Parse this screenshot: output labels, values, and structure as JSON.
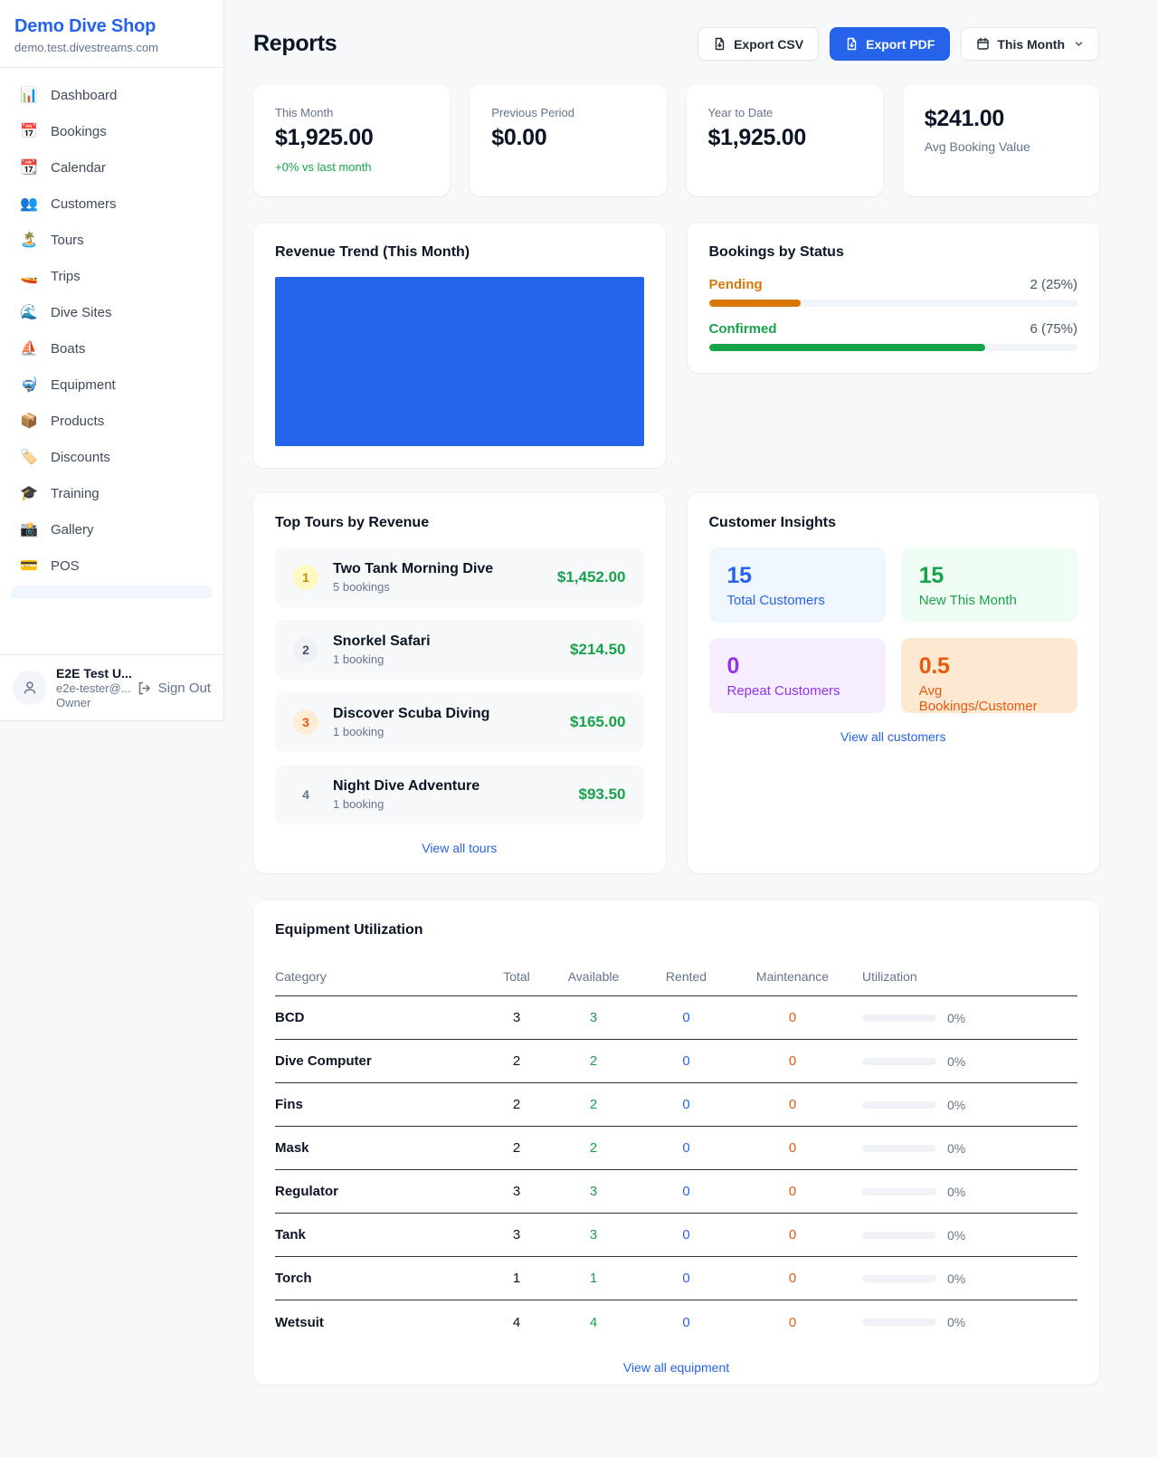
{
  "colors": {
    "accent_blue": "#2563eb",
    "green": "#16a34a",
    "orange_pending": "#d97706",
    "orange_deep": "#ea580c",
    "purple": "#9333ea",
    "page_bg": "#f7f8fa"
  },
  "sidebar": {
    "brand": "Demo Dive Shop",
    "domain": "demo.test.divestreams.com",
    "items": [
      {
        "icon": "📊",
        "label": "Dashboard"
      },
      {
        "icon": "📅",
        "label": "Bookings"
      },
      {
        "icon": "📆",
        "label": "Calendar"
      },
      {
        "icon": "👥",
        "label": "Customers"
      },
      {
        "icon": "🏝️",
        "label": "Tours"
      },
      {
        "icon": "🚤",
        "label": "Trips"
      },
      {
        "icon": "🌊",
        "label": "Dive Sites"
      },
      {
        "icon": "⛵",
        "label": "Boats"
      },
      {
        "icon": "🤿",
        "label": "Equipment"
      },
      {
        "icon": "📦",
        "label": "Products"
      },
      {
        "icon": "🏷️",
        "label": "Discounts"
      },
      {
        "icon": "🎓",
        "label": "Training"
      },
      {
        "icon": "📸",
        "label": "Gallery"
      },
      {
        "icon": "💳",
        "label": "POS"
      }
    ],
    "user": {
      "name": "E2E Test U...",
      "email": "e2e-tester@...",
      "role": "Owner",
      "sign_out": "Sign Out"
    }
  },
  "header": {
    "title": "Reports",
    "export_csv": "Export CSV",
    "export_pdf": "Export PDF",
    "period": "This Month"
  },
  "stats": {
    "this_month": {
      "label": "This Month",
      "value": "$1,925.00",
      "delta": "+0% vs last month"
    },
    "previous_period": {
      "label": "Previous Period",
      "value": "$0.00"
    },
    "year_to_date": {
      "label": "Year to Date",
      "value": "$1,925.00"
    },
    "avg_booking": {
      "value": "$241.00",
      "label": "Avg Booking Value"
    }
  },
  "revenue_trend": {
    "title": "Revenue Trend (This Month)"
  },
  "bookings_status": {
    "title": "Bookings by Status",
    "items": [
      {
        "label": "Pending",
        "value": "2 (25%)",
        "percent": 25
      },
      {
        "label": "Confirmed",
        "value": "6 (75%)",
        "percent": 75
      }
    ]
  },
  "top_tours": {
    "title": "Top Tours by Revenue",
    "items": [
      {
        "rank": "1",
        "name": "Two Tank Morning Dive",
        "bookings": "5 bookings",
        "revenue": "$1,452.00"
      },
      {
        "rank": "2",
        "name": "Snorkel Safari",
        "bookings": "1 booking",
        "revenue": "$214.50"
      },
      {
        "rank": "3",
        "name": "Discover Scuba Diving",
        "bookings": "1 booking",
        "revenue": "$165.00"
      },
      {
        "rank": "4",
        "name": "Night Dive Adventure",
        "bookings": "1 booking",
        "revenue": "$93.50"
      }
    ],
    "link": "View all tours"
  },
  "customer_insights": {
    "title": "Customer Insights",
    "tiles": [
      {
        "value": "15",
        "label": "Total Customers"
      },
      {
        "value": "15",
        "label": "New This Month"
      },
      {
        "value": "0",
        "label": "Repeat Customers"
      },
      {
        "value": "0.5",
        "label": "Avg Bookings/Customer"
      }
    ],
    "link": "View all customers"
  },
  "equipment": {
    "title": "Equipment Utilization",
    "headers": [
      "Category",
      "Total",
      "Available",
      "Rented",
      "Maintenance",
      "Utilization"
    ],
    "rows": [
      {
        "category": "BCD",
        "total": "3",
        "available": "3",
        "rented": "0",
        "maintenance": "0",
        "utilization": "0%",
        "utilization_percent": 0
      },
      {
        "category": "Dive Computer",
        "total": "2",
        "available": "2",
        "rented": "0",
        "maintenance": "0",
        "utilization": "0%",
        "utilization_percent": 0
      },
      {
        "category": "Fins",
        "total": "2",
        "available": "2",
        "rented": "0",
        "maintenance": "0",
        "utilization": "0%",
        "utilization_percent": 0
      },
      {
        "category": "Mask",
        "total": "2",
        "available": "2",
        "rented": "0",
        "maintenance": "0",
        "utilization": "0%",
        "utilization_percent": 0
      },
      {
        "category": "Regulator",
        "total": "3",
        "available": "3",
        "rented": "0",
        "maintenance": "0",
        "utilization": "0%",
        "utilization_percent": 0
      },
      {
        "category": "Tank",
        "total": "3",
        "available": "3",
        "rented": "0",
        "maintenance": "0",
        "utilization": "0%",
        "utilization_percent": 0
      },
      {
        "category": "Torch",
        "total": "1",
        "available": "1",
        "rented": "0",
        "maintenance": "0",
        "utilization": "0%",
        "utilization_percent": 0
      },
      {
        "category": "Wetsuit",
        "total": "4",
        "available": "4",
        "rented": "0",
        "maintenance": "0",
        "utilization": "0%",
        "utilization_percent": 0
      }
    ],
    "link": "View all equipment"
  },
  "chart_data": [
    {
      "type": "bar",
      "title": "Revenue Trend (This Month)",
      "categories": [
        "This Month"
      ],
      "values": [
        1925
      ],
      "ylim": [
        0,
        1925
      ],
      "color": "#2563eb",
      "grid": false,
      "legend": false,
      "note": "single solid blue bar fills the entire plot area; no visible axes or tick labels"
    },
    {
      "type": "bar",
      "title": "Bookings by Status",
      "categories": [
        "Pending",
        "Confirmed"
      ],
      "values": [
        2,
        6
      ],
      "percents": [
        25,
        75
      ],
      "colors": [
        "#d97706",
        "#16a34a"
      ],
      "layout": "horizontal-progress",
      "legend": false
    }
  ]
}
